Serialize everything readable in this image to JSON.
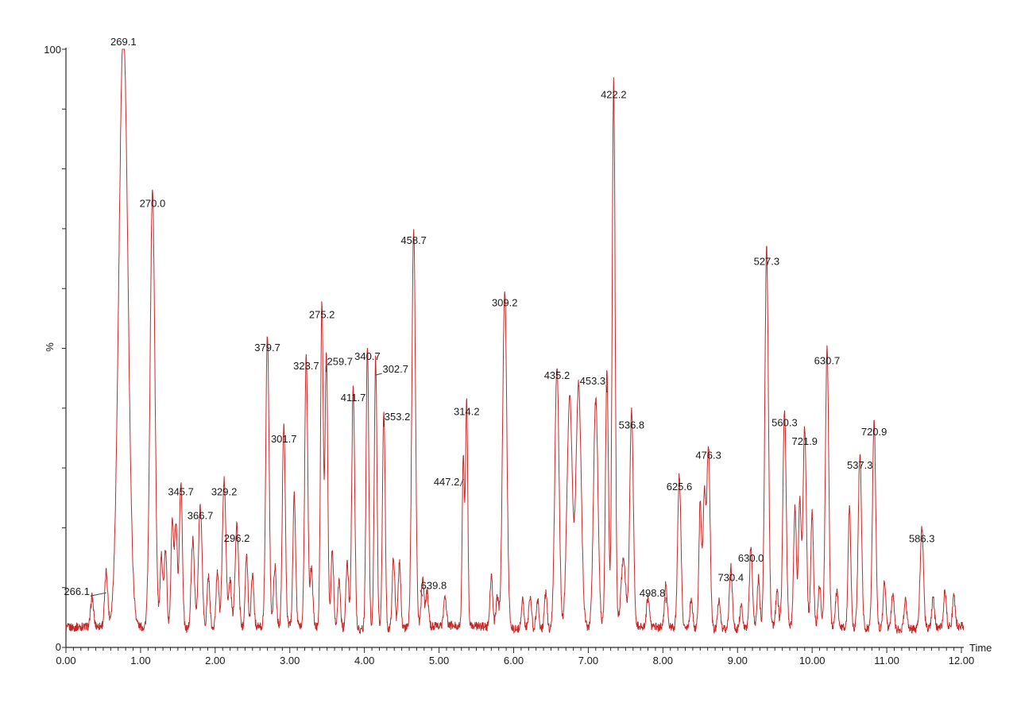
{
  "chart_data": {
    "type": "line",
    "title": "",
    "xlabel": "Time",
    "ylabel": "%",
    "xlim": [
      0,
      12.0
    ],
    "ylim": [
      0,
      100
    ],
    "grid": false,
    "legend": "none",
    "trace_color": "#c62828",
    "axis_color": "#2a2a2a",
    "label_color": "#1a1a1a",
    "x_major_tick_interval": 1.0,
    "x_minor_tick_interval": 0.1,
    "y_minor_tick_interval": 10,
    "x_tick_labels": [
      "0.00",
      "1.00",
      "2.00",
      "3.00",
      "4.00",
      "5.00",
      "6.00",
      "7.00",
      "8.00",
      "9.00",
      "10.00",
      "11.00",
      "12.00"
    ],
    "y_axis_max_label": "100",
    "y_axis_min_label": "0",
    "baseline_pct": 3.3,
    "labeled_peaks": [
      {
        "label": "266.1",
        "t": 0.54,
        "h": 9,
        "w": 0.02,
        "lx": -37,
        "ly": -2,
        "leader": true
      },
      {
        "label": "269.1",
        "t": 0.77,
        "h": 100,
        "w": 0.06
      },
      {
        "label": "270.0",
        "t": 1.16,
        "h": 73,
        "w": 0.032
      },
      {
        "label": "345.7",
        "t": 1.54,
        "h": 24.8,
        "w": 0.02
      },
      {
        "label": "366.7",
        "t": 1.8,
        "h": 20.8,
        "w": 0.024
      },
      {
        "label": "329.2",
        "t": 2.12,
        "h": 24.8,
        "w": 0.024
      },
      {
        "label": "296.2",
        "t": 2.29,
        "h": 17,
        "w": 0.024
      },
      {
        "label": "379.7",
        "t": 2.7,
        "h": 48.9,
        "w": 0.022
      },
      {
        "label": "301.7",
        "t": 2.92,
        "h": 33.6,
        "w": 0.02
      },
      {
        "label": "323.7",
        "t": 3.22,
        "h": 45.8,
        "w": 0.02
      },
      {
        "label": "275.2",
        "t": 3.43,
        "h": 54.4,
        "w": 0.018
      },
      {
        "label": "259.7",
        "t": 3.49,
        "h": 45.9,
        "w": 0.018,
        "lx": 17,
        "ly": -14,
        "leader": true
      },
      {
        "label": "411.7",
        "t": 3.85,
        "h": 40.5,
        "w": 0.02
      },
      {
        "label": "340.7",
        "t": 4.04,
        "h": 47.4,
        "w": 0.018
      },
      {
        "label": "302.7",
        "t": 4.15,
        "h": 45.4,
        "w": 0.018,
        "lx": 25,
        "ly": -8,
        "leader": true
      },
      {
        "label": "353.2",
        "t": 4.26,
        "h": 36.8,
        "w": 0.018,
        "lx": 17,
        "ly": -13,
        "leader": true
      },
      {
        "label": "458.7",
        "t": 4.66,
        "h": 66.8,
        "w": 0.024
      },
      {
        "label": "639.8",
        "t": 4.78,
        "h": 8.4,
        "w": 0.018,
        "lx": 14,
        "ly": -14,
        "leader": true
      },
      {
        "label": "447.2",
        "t": 5.325,
        "h": 28,
        "w": 0.015,
        "lx": -21,
        "ly": 3,
        "leader": true
      },
      {
        "label": "314.2",
        "t": 5.37,
        "h": 38.2,
        "w": 0.015
      },
      {
        "label": "309.2",
        "t": 5.88,
        "h": 56.4,
        "w": 0.028
      },
      {
        "label": "435.2",
        "t": 6.58,
        "h": 44.2,
        "w": 0.028
      },
      {
        "label": "453.3",
        "t": 7.25,
        "h": 42.5,
        "w": 0.02,
        "lx": -18,
        "ly": -15,
        "leader": true
      },
      {
        "label": "422.2",
        "t": 7.34,
        "h": 91.2,
        "w": 0.02
      },
      {
        "label": "536.8",
        "t": 7.58,
        "h": 35.9,
        "w": 0.024
      },
      {
        "label": "498.8",
        "t": 8.04,
        "h": 7.3,
        "w": 0.018,
        "lx": -17,
        "ly": -13,
        "leader": true
      },
      {
        "label": "625.6",
        "t": 8.22,
        "h": 25.6,
        "w": 0.022
      },
      {
        "label": "476.3",
        "t": 8.61,
        "h": 30.9,
        "w": 0.022
      },
      {
        "label": "730.4",
        "t": 8.91,
        "h": 10.4,
        "w": 0.02
      },
      {
        "label": "630.0",
        "t": 9.18,
        "h": 13.7,
        "w": 0.02
      },
      {
        "label": "527.3",
        "t": 9.39,
        "h": 63.3,
        "w": 0.024
      },
      {
        "label": "560.3",
        "t": 9.63,
        "h": 36.3,
        "w": 0.022
      },
      {
        "label": "721.9",
        "t": 9.9,
        "h": 33.2,
        "w": 0.022
      },
      {
        "label": "630.7",
        "t": 10.2,
        "h": 46.7,
        "w": 0.022
      },
      {
        "label": "537.3",
        "t": 10.64,
        "h": 29.2,
        "w": 0.022
      },
      {
        "label": "720.9",
        "t": 10.83,
        "h": 34.8,
        "w": 0.022
      },
      {
        "label": "586.3",
        "t": 11.47,
        "h": 16.9,
        "w": 0.022
      }
    ],
    "unlabeled_peaks": [
      [
        0.35,
        5
      ],
      [
        1.28,
        12
      ],
      [
        1.335,
        13
      ],
      [
        1.425,
        18
      ],
      [
        1.475,
        17
      ],
      [
        1.7,
        15,
        0.022
      ],
      [
        1.91,
        9
      ],
      [
        2.03,
        10
      ],
      [
        2.2,
        8
      ],
      [
        2.42,
        12
      ],
      [
        2.5,
        9
      ],
      [
        2.8,
        10
      ],
      [
        3.06,
        22
      ],
      [
        3.29,
        10
      ],
      [
        3.57,
        13
      ],
      [
        3.66,
        8
      ],
      [
        3.77,
        11
      ],
      [
        4.39,
        12
      ],
      [
        4.47,
        11
      ],
      [
        4.84,
        6
      ],
      [
        5.08,
        5
      ],
      [
        5.7,
        8.6
      ],
      [
        5.78,
        5
      ],
      [
        6.12,
        5
      ],
      [
        6.22,
        5.5
      ],
      [
        6.32,
        5
      ],
      [
        6.43,
        6
      ],
      [
        6.75,
        38.8,
        0.035
      ],
      [
        6.87,
        40.9,
        0.035
      ],
      [
        7.1,
        38.2,
        0.03
      ],
      [
        7.47,
        11,
        0.03
      ],
      [
        7.8,
        5
      ],
      [
        8.38,
        5
      ],
      [
        8.5,
        21
      ],
      [
        8.555,
        22
      ],
      [
        8.75,
        5
      ],
      [
        9.05,
        4
      ],
      [
        9.28,
        8.4
      ],
      [
        9.53,
        6
      ],
      [
        9.77,
        20
      ],
      [
        9.835,
        21
      ],
      [
        10.0,
        19
      ],
      [
        10.1,
        7
      ],
      [
        10.33,
        6
      ],
      [
        10.5,
        20
      ],
      [
        10.97,
        8
      ],
      [
        11.08,
        6
      ],
      [
        11.25,
        5
      ],
      [
        11.62,
        5
      ],
      [
        11.78,
        6
      ],
      [
        11.9,
        5
      ]
    ]
  }
}
